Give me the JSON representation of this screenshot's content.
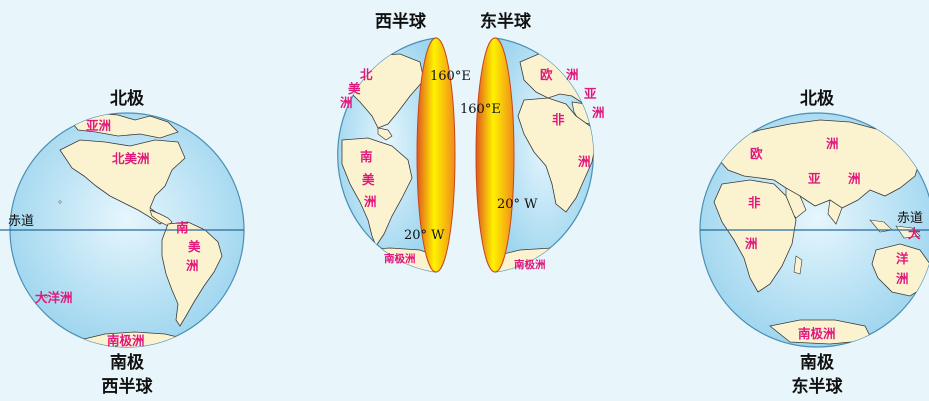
{
  "colors": {
    "ocean": "#bfe6f7",
    "ocean_edge": "#e6f6fd",
    "land": "#fbf3cf",
    "coast": "#3a3a3a",
    "slice_hot": "#fff200",
    "slice_edge": "#e0561f",
    "label_magenta": "#e0197d"
  },
  "top_title": {
    "west": "西半球",
    "east": "东半球"
  },
  "left_globe": {
    "north_pole": "北极",
    "south_pole": "南极",
    "caption": "西半球",
    "equator": "赤道",
    "continents": {
      "asia_fragment": "亚洲",
      "north_america": "北美洲",
      "south_america_1": "南",
      "south_america_2": "美",
      "south_america_3": "洲",
      "oceania": "大洋洲",
      "antarctica": "南极洲"
    }
  },
  "center_split": {
    "west_half": {
      "north_america_1": "北",
      "north_america_2": "美",
      "north_america_3": "洲",
      "south_america_1": "南",
      "south_america_2": "美",
      "south_america_3": "洲",
      "antarctica": "南极洲",
      "longitude_top": "160°E",
      "longitude_bottom": "20° W"
    },
    "east_half": {
      "europe_1": "欧",
      "europe_2": "洲",
      "asia_1": "亚",
      "asia_2": "洲",
      "africa_1": "非",
      "africa_2": "洲",
      "antarctica": "南极洲",
      "longitude_top": "160°E",
      "longitude_bottom": "20° W"
    }
  },
  "right_globe": {
    "north_pole": "北极",
    "south_pole": "南极",
    "caption": "东半球",
    "equator": "赤道",
    "continents": {
      "europe_1": "欧",
      "europe_2": "洲",
      "asia_1": "亚",
      "asia_2": "洲",
      "africa_1": "非",
      "africa_2": "洲",
      "oceania_1": "大",
      "oceania_2": "洋",
      "oceania_3": "洲",
      "antarctica": "南极洲"
    }
  }
}
